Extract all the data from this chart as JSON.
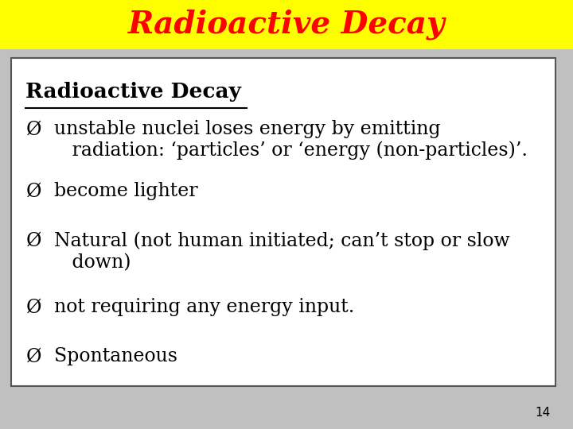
{
  "title": "Radioactive Decay",
  "title_color": "#ff0000",
  "title_bg_color": "#ffff00",
  "title_fontsize": 28,
  "content_bg_color": "#ffffff",
  "slide_bg_color": "#c0c0c0",
  "box_header": "Radioactive Decay",
  "bullets": [
    "unstable nuclei loses energy by emitting\n   radiation: ‘particles’ or ‘energy (non-particles)’.",
    "become lighter",
    "Natural (not human initiated; can’t stop or slow\n   down)",
    "not requiring any energy input.",
    "Spontaneous"
  ],
  "page_number": "14",
  "content_fontsize": 17,
  "header_fontsize": 19
}
